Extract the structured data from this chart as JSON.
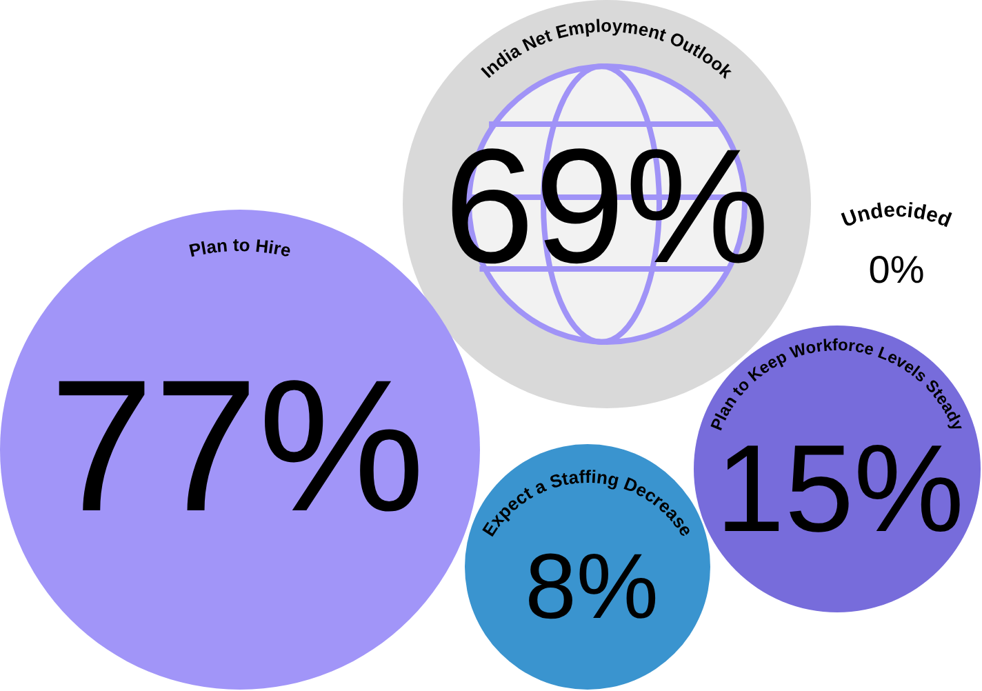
{
  "chart_data": {
    "type": "other",
    "categories": [
      "India Net Employment Outlook",
      "Plan to Hire",
      "Undecided",
      "Plan to Keep Workforce Levels Steady",
      "Expect a Staffing Decrease"
    ],
    "values": [
      69,
      77,
      0,
      15,
      8
    ],
    "value_labels": [
      "69%",
      "77%",
      "0%",
      "15%",
      "8%"
    ],
    "data_labels": true,
    "colors": [
      "#d9d9d9",
      "#a195f8",
      null,
      "#776cdb",
      "#3a94cf"
    ]
  }
}
